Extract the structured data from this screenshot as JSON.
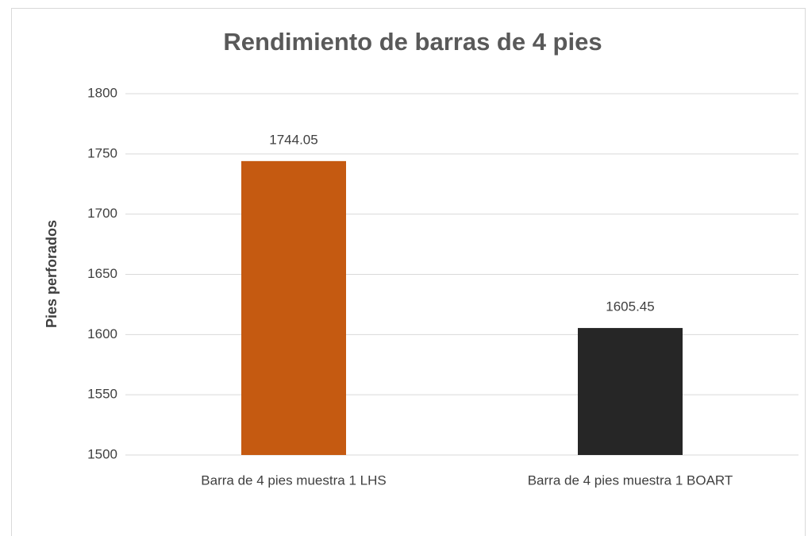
{
  "chart_data": {
    "type": "bar",
    "title": "Rendimiento de barras de 4 pies",
    "y_label": "Pies perforados",
    "categories": [
      "Barra de 4 pies muestra 1 LHS",
      "Barra de 4 pies muestra 1 BOART"
    ],
    "values": [
      1744.05,
      1605.45
    ],
    "colors": [
      "#c55a11",
      "#262626"
    ],
    "ylim": [
      1500,
      1800
    ],
    "yticks": [
      1500,
      1550,
      1600,
      1650,
      1700,
      1750,
      1800
    ],
    "grid": true
  }
}
